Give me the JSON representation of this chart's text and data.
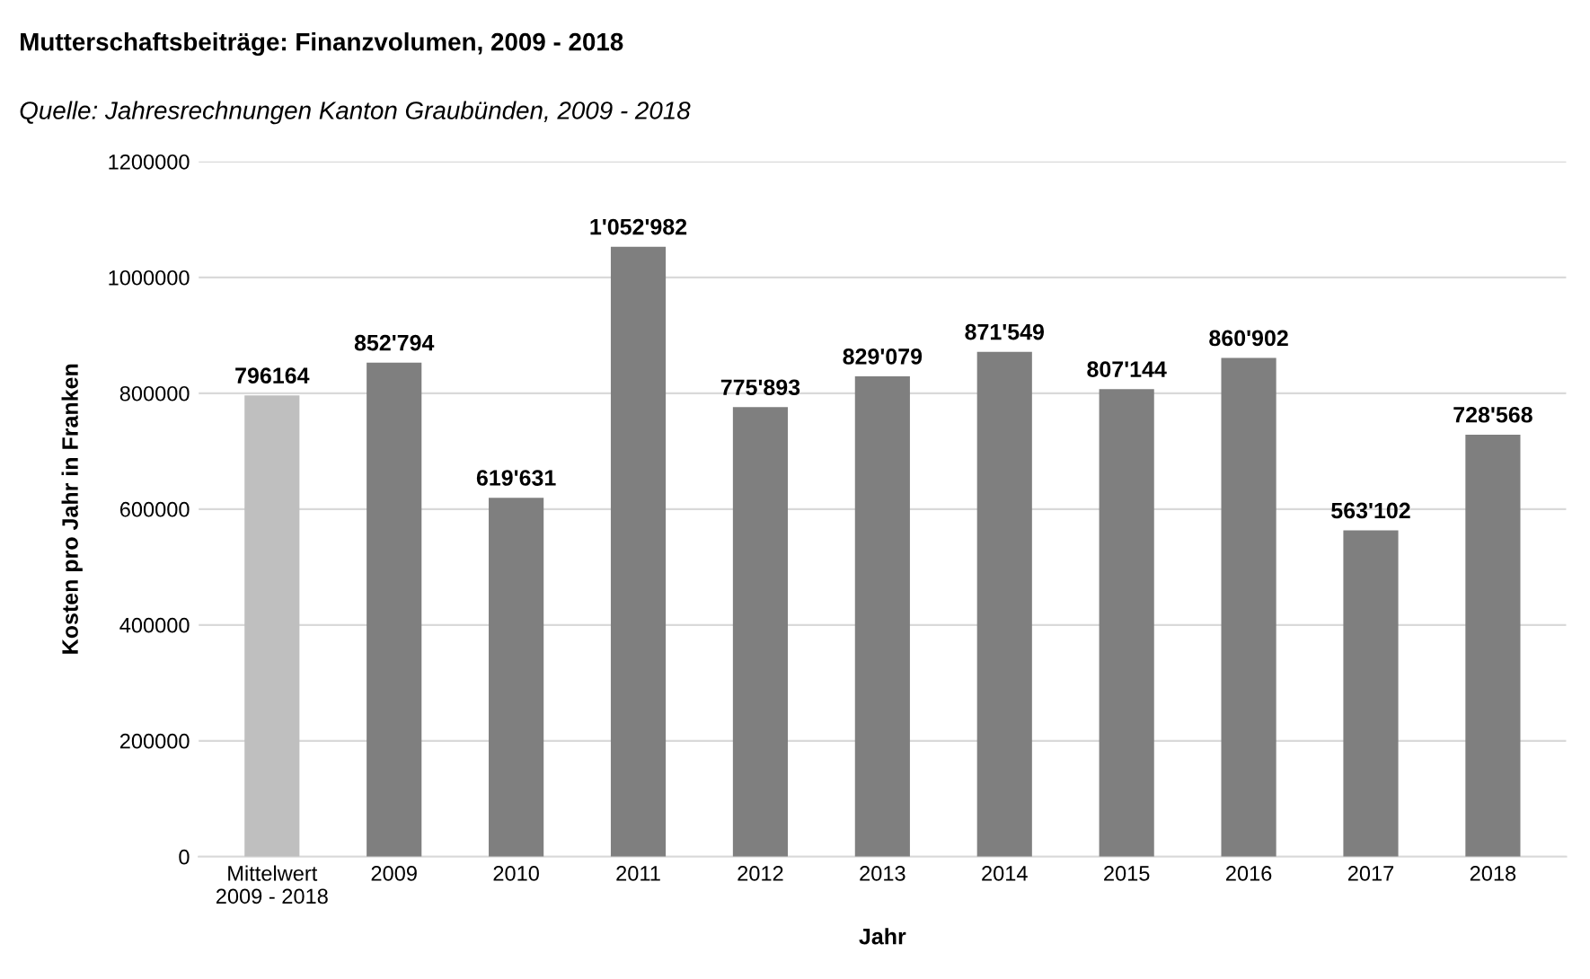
{
  "chart_data": {
    "type": "bar",
    "title": "Mutterschaftsbeiträge: Finanzvolumen, 2009 - 2018",
    "subtitle": "Quelle: Jahresrechnungen Kanton Graubünden, 2009 - 2018",
    "xlabel": "Jahr",
    "ylabel": "Kosten pro Jahr in Franken",
    "categories": [
      "Mittelwert\n2009 - 2018",
      "2009",
      "2010",
      "2011",
      "2012",
      "2013",
      "2014",
      "2015",
      "2016",
      "2017",
      "2018"
    ],
    "values": [
      796164,
      852794,
      619631,
      1052982,
      775893,
      829079,
      871549,
      807144,
      860902,
      563102,
      728568
    ],
    "value_labels": [
      "796164",
      "852'794",
      "619'631",
      "1'052'982",
      "775'893",
      "829'079",
      "871'549",
      "807'144",
      "860'902",
      "563'102",
      "728'568"
    ],
    "colors": [
      "#bfbfbf",
      "#7f7f7f",
      "#7f7f7f",
      "#7f7f7f",
      "#7f7f7f",
      "#7f7f7f",
      "#7f7f7f",
      "#7f7f7f",
      "#7f7f7f",
      "#7f7f7f",
      "#7f7f7f"
    ],
    "ylim": [
      0,
      1200000
    ],
    "yticks": [
      0,
      200000,
      400000,
      600000,
      800000,
      1000000,
      1200000
    ],
    "grid": "y"
  }
}
